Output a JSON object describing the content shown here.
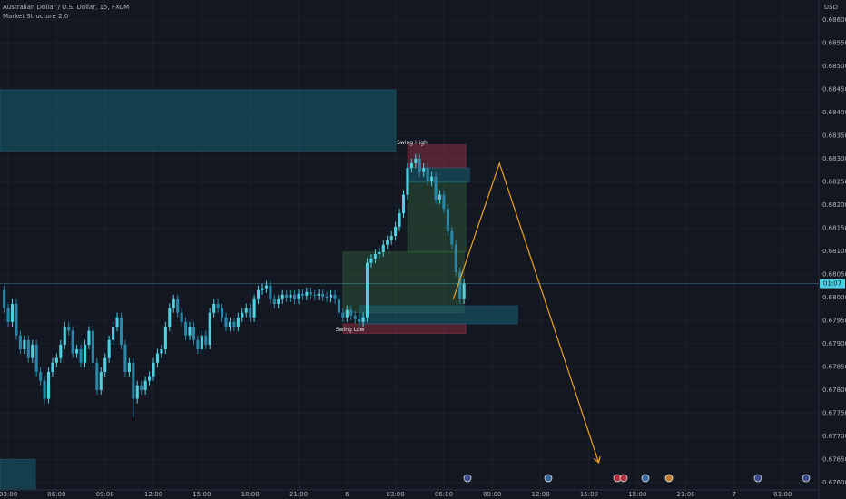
{
  "chart_data": {
    "type": "candlestick",
    "title": "Australian Dollar / U.S. Dollar, 15, FXCM",
    "subtitle": "Market Structure 2.0",
    "y_axis_label": "USD",
    "up_color": "#4dd0e1",
    "down_color": "#2a86a6",
    "background": "#131722",
    "grid": true,
    "xlim": [
      2.49,
      53.24
    ],
    "ylim": [
      0.67584,
      0.68643
    ],
    "xticks": [
      {
        "value": 3,
        "label": "03:00"
      },
      {
        "value": 6,
        "label": "06:00"
      },
      {
        "value": 9,
        "label": "09:00"
      },
      {
        "value": 12,
        "label": "12:00"
      },
      {
        "value": 15,
        "label": "15:00"
      },
      {
        "value": 18,
        "label": "18:00"
      },
      {
        "value": 21,
        "label": "21:00"
      },
      {
        "value": 24,
        "label": "6"
      },
      {
        "value": 27,
        "label": "03:00"
      },
      {
        "value": 30,
        "label": "06:00"
      },
      {
        "value": 33,
        "label": "09:00"
      },
      {
        "value": 36,
        "label": "12:00"
      },
      {
        "value": 39,
        "label": "15:00"
      },
      {
        "value": 42,
        "label": "18:00"
      },
      {
        "value": 45,
        "label": "21:00"
      },
      {
        "value": 48,
        "label": "7"
      },
      {
        "value": 51,
        "label": "03:00"
      }
    ],
    "yticks": [
      {
        "value": 0.676,
        "label": "0.67600"
      },
      {
        "value": 0.6765,
        "label": "0.67650"
      },
      {
        "value": 0.677,
        "label": "0.67700"
      },
      {
        "value": 0.6775,
        "label": "0.67750"
      },
      {
        "value": 0.678,
        "label": "0.67800"
      },
      {
        "value": 0.6785,
        "label": "0.67850"
      },
      {
        "value": 0.679,
        "label": "0.67900"
      },
      {
        "value": 0.6795,
        "label": "0.67950"
      },
      {
        "value": 0.68,
        "label": "0.68000"
      },
      {
        "value": 0.6805,
        "label": "0.68050"
      },
      {
        "value": 0.681,
        "label": "0.68100"
      },
      {
        "value": 0.6815,
        "label": "0.68150"
      },
      {
        "value": 0.682,
        "label": "0.68200"
      },
      {
        "value": 0.6825,
        "label": "0.68250"
      },
      {
        "value": 0.683,
        "label": "0.68300"
      },
      {
        "value": 0.6835,
        "label": "0.68350"
      },
      {
        "value": 0.684,
        "label": "0.68400"
      },
      {
        "value": 0.6845,
        "label": "0.68450"
      },
      {
        "value": 0.685,
        "label": "0.68500"
      },
      {
        "value": 0.6855,
        "label": "0.68550"
      },
      {
        "value": 0.686,
        "label": "0.68600"
      }
    ],
    "x": [
      2.75,
      3,
      3.25,
      3.5,
      3.75,
      4,
      4.25,
      4.5,
      4.75,
      5,
      5.25,
      5.5,
      5.75,
      6,
      6.25,
      6.5,
      6.75,
      7,
      7.25,
      7.5,
      7.75,
      8,
      8.25,
      8.5,
      8.75,
      9,
      9.25,
      9.5,
      9.75,
      10,
      10.25,
      10.5,
      10.75,
      11,
      11.25,
      11.5,
      11.75,
      12,
      12.25,
      12.5,
      12.75,
      13,
      13.25,
      13.5,
      13.75,
      14,
      14.25,
      14.5,
      14.75,
      15,
      15.25,
      15.5,
      15.75,
      16,
      16.25,
      16.5,
      16.75,
      17,
      17.25,
      17.5,
      17.75,
      18,
      18.25,
      18.5,
      18.75,
      19,
      19.25,
      19.5,
      19.75,
      20,
      20.25,
      20.5,
      20.75,
      21,
      21.25,
      21.5,
      21.75,
      22,
      22.25,
      22.5,
      22.75,
      23,
      23.25,
      23.5,
      23.75,
      24,
      24.25,
      24.5,
      24.75,
      25,
      25.25,
      25.5,
      25.75,
      26,
      26.25,
      26.5,
      26.75,
      27,
      27.25,
      27.5,
      27.75,
      28,
      28.25,
      28.5,
      28.75,
      29,
      29.25,
      29.5,
      29.75,
      30,
      30.25,
      30.5,
      30.75,
      31,
      31.25
    ],
    "open": [
      0.68016,
      0.67977,
      0.67947,
      0.67986,
      0.67918,
      0.67888,
      0.67908,
      0.67869,
      0.67898,
      0.67839,
      0.6782,
      0.67781,
      0.67839,
      0.67859,
      0.67869,
      0.67898,
      0.67937,
      0.67928,
      0.67879,
      0.67888,
      0.67859,
      0.67898,
      0.67928,
      0.67859,
      0.678,
      0.67839,
      0.67869,
      0.67908,
      0.67937,
      0.67957,
      0.67898,
      0.67839,
      0.67859,
      0.67781,
      0.6781,
      0.678,
      0.6782,
      0.6783,
      0.67859,
      0.67879,
      0.67888,
      0.67937,
      0.67977,
      0.67996,
      0.67967,
      0.67947,
      0.67918,
      0.67937,
      0.67908,
      0.67888,
      0.67918,
      0.67898,
      0.67967,
      0.67986,
      0.67977,
      0.67957,
      0.67937,
      0.67947,
      0.67937,
      0.67957,
      0.67967,
      0.67977,
      0.67957,
      0.67996,
      0.68016,
      0.6802,
      0.68026,
      0.67996,
      0.67986,
      0.67996,
      0.68006,
      0.68,
      0.68006,
      0.67996,
      0.68008,
      0.68004,
      0.68012,
      0.68006,
      0.68004,
      0.68008,
      0.68002,
      0.68,
      0.68006,
      0.67996,
      0.67967,
      0.67957,
      0.67973,
      0.67961,
      0.67953,
      0.67947,
      0.67957,
      0.68075,
      0.68084,
      0.68094,
      0.68098,
      0.68114,
      0.68124,
      0.68133,
      0.68153,
      0.68182,
      0.68222,
      0.6828,
      0.6829,
      0.683,
      0.68271,
      0.6828,
      0.68251,
      0.68261,
      0.68212,
      0.68222,
      0.68192,
      0.68143,
      0.68114,
      0.68055,
      0.67996
    ],
    "high": [
      0.68026,
      0.67987,
      0.67996,
      0.67996,
      0.67928,
      0.67918,
      0.67918,
      0.67908,
      0.67908,
      0.67849,
      0.6783,
      0.67849,
      0.67869,
      0.67879,
      0.67908,
      0.67947,
      0.67947,
      0.67938,
      0.67898,
      0.67898,
      0.67908,
      0.67938,
      0.67938,
      0.67869,
      0.67849,
      0.67879,
      0.67918,
      0.67947,
      0.67967,
      0.67967,
      0.67908,
      0.67869,
      0.67869,
      0.6782,
      0.6782,
      0.6783,
      0.6784,
      0.67869,
      0.67889,
      0.67898,
      0.67947,
      0.67987,
      0.68006,
      0.68006,
      0.67977,
      0.67957,
      0.67947,
      0.67947,
      0.67918,
      0.67928,
      0.67928,
      0.67977,
      0.67996,
      0.67996,
      0.67987,
      0.67967,
      0.67957,
      0.67957,
      0.67967,
      0.67977,
      0.67987,
      0.67987,
      0.68006,
      0.68026,
      0.6803,
      0.68036,
      0.68036,
      0.68006,
      0.68006,
      0.68016,
      0.68016,
      0.68016,
      0.68016,
      0.68018,
      0.68018,
      0.68022,
      0.68022,
      0.68016,
      0.68018,
      0.68018,
      0.68012,
      0.68016,
      0.68016,
      0.68006,
      0.67977,
      0.67983,
      0.67983,
      0.67971,
      0.67963,
      0.67967,
      0.68085,
      0.68094,
      0.68104,
      0.68108,
      0.68124,
      0.68134,
      0.68143,
      0.68163,
      0.68192,
      0.68232,
      0.6829,
      0.683,
      0.6831,
      0.6831,
      0.6829,
      0.6829,
      0.68271,
      0.68271,
      0.68232,
      0.68232,
      0.68202,
      0.68153,
      0.68124,
      0.68065,
      0.6804
    ],
    "low": [
      0.67967,
      0.67937,
      0.67937,
      0.67908,
      0.67878,
      0.67878,
      0.67859,
      0.67859,
      0.67829,
      0.6781,
      0.67771,
      0.67771,
      0.67829,
      0.67849,
      0.67859,
      0.67888,
      0.67918,
      0.67869,
      0.67869,
      0.67849,
      0.67849,
      0.67888,
      0.67849,
      0.6779,
      0.6779,
      0.67829,
      0.67859,
      0.67898,
      0.67927,
      0.67888,
      0.67829,
      0.67829,
      0.6774,
      0.67771,
      0.6779,
      0.6779,
      0.6781,
      0.6782,
      0.67849,
      0.67869,
      0.67878,
      0.67927,
      0.67967,
      0.67957,
      0.67937,
      0.67908,
      0.67908,
      0.67898,
      0.67878,
      0.67878,
      0.67888,
      0.67888,
      0.67957,
      0.67967,
      0.67947,
      0.67927,
      0.67927,
      0.67927,
      0.67927,
      0.67947,
      0.67957,
      0.67947,
      0.67947,
      0.67986,
      0.68006,
      0.6801,
      0.67986,
      0.67976,
      0.67976,
      0.67986,
      0.6799,
      0.6799,
      0.67986,
      0.67986,
      0.67994,
      0.67994,
      0.67996,
      0.67994,
      0.67994,
      0.67992,
      0.6799,
      0.6799,
      0.67986,
      0.67957,
      0.67947,
      0.67947,
      0.67951,
      0.67943,
      0.67937,
      0.67937,
      0.67947,
      0.68065,
      0.68074,
      0.68084,
      0.68088,
      0.68104,
      0.68114,
      0.68123,
      0.68143,
      0.68172,
      0.68212,
      0.6827,
      0.6828,
      0.68261,
      0.68261,
      0.68241,
      0.68241,
      0.68202,
      0.68202,
      0.68182,
      0.68133,
      0.68104,
      0.68045,
      0.67986,
      0.67986
    ],
    "close": [
      0.67977,
      0.67947,
      0.67986,
      0.67918,
      0.67888,
      0.67908,
      0.67869,
      0.67898,
      0.67839,
      0.6782,
      0.67781,
      0.67839,
      0.67859,
      0.67869,
      0.67898,
      0.67937,
      0.67928,
      0.67879,
      0.67888,
      0.67859,
      0.67898,
      0.67928,
      0.67859,
      0.678,
      0.67839,
      0.67869,
      0.67908,
      0.67937,
      0.67957,
      0.67898,
      0.67839,
      0.67859,
      0.67781,
      0.6781,
      0.678,
      0.6782,
      0.6783,
      0.67859,
      0.67879,
      0.67888,
      0.67937,
      0.67977,
      0.67996,
      0.67967,
      0.67947,
      0.67918,
      0.67937,
      0.67908,
      0.67888,
      0.67918,
      0.67898,
      0.67967,
      0.67986,
      0.67977,
      0.67957,
      0.67937,
      0.67947,
      0.67937,
      0.67957,
      0.67967,
      0.67977,
      0.67957,
      0.67996,
      0.68016,
      0.6802,
      0.68026,
      0.67996,
      0.67986,
      0.67996,
      0.68006,
      0.68,
      0.68006,
      0.67996,
      0.68008,
      0.68004,
      0.68012,
      0.68006,
      0.68004,
      0.68008,
      0.68002,
      0.68,
      0.68006,
      0.67996,
      0.67967,
      0.67957,
      0.67973,
      0.67961,
      0.67953,
      0.67947,
      0.67957,
      0.68075,
      0.68084,
      0.68094,
      0.68098,
      0.68114,
      0.68124,
      0.68133,
      0.68153,
      0.68182,
      0.68222,
      0.6828,
      0.6829,
      0.683,
      0.68271,
      0.6828,
      0.68251,
      0.68261,
      0.68212,
      0.68222,
      0.68192,
      0.68143,
      0.68114,
      0.68055,
      0.67996,
      0.6803
    ],
    "zones": [
      {
        "x": [
          2.49,
          27.02
        ],
        "y": [
          0.68316,
          0.68449
        ],
        "color": "rgba(24,110,130,0.45)"
      },
      {
        "x": [
          2.49,
          4.69
        ],
        "y": [
          0.67584,
          0.6765
        ],
        "color": "rgba(24,110,130,0.45)"
      },
      {
        "x": [
          23.75,
          31.25
        ],
        "y": [
          0.67967,
          0.68098
        ],
        "color": "rgba(76,175,80,0.22)"
      },
      {
        "x": [
          27.76,
          31.37
        ],
        "y": [
          0.68098,
          0.68251
        ],
        "color": "rgba(76,175,80,0.22)"
      },
      {
        "x": [
          27.76,
          31.37
        ],
        "y": [
          0.6828,
          0.6833
        ],
        "color": "rgba(200,60,80,0.35)"
      },
      {
        "x": [
          23.75,
          31.37
        ],
        "y": [
          0.67922,
          0.67943
        ],
        "color": "rgba(200,60,80,0.35)"
      },
      {
        "x": [
          27.76,
          31.59
        ],
        "y": [
          0.68249,
          0.6828
        ],
        "color": "rgba(24,110,130,0.45)"
      },
      {
        "x": [
          24.77,
          34.58
        ],
        "y": [
          0.67943,
          0.67982
        ],
        "color": "rgba(24,110,130,0.45)"
      }
    ],
    "swing_high_label": "Swing High",
    "swing_low_label": "Swing Low",
    "projection": {
      "color": "#f0a020",
      "x": [
        30.58,
        33.45,
        39.6
      ],
      "y": [
        0.67996,
        0.6829,
        0.67643
      ]
    },
    "price_line": {
      "value": 0.6803,
      "label": "01:07",
      "color": "#4dd0e1"
    }
  }
}
